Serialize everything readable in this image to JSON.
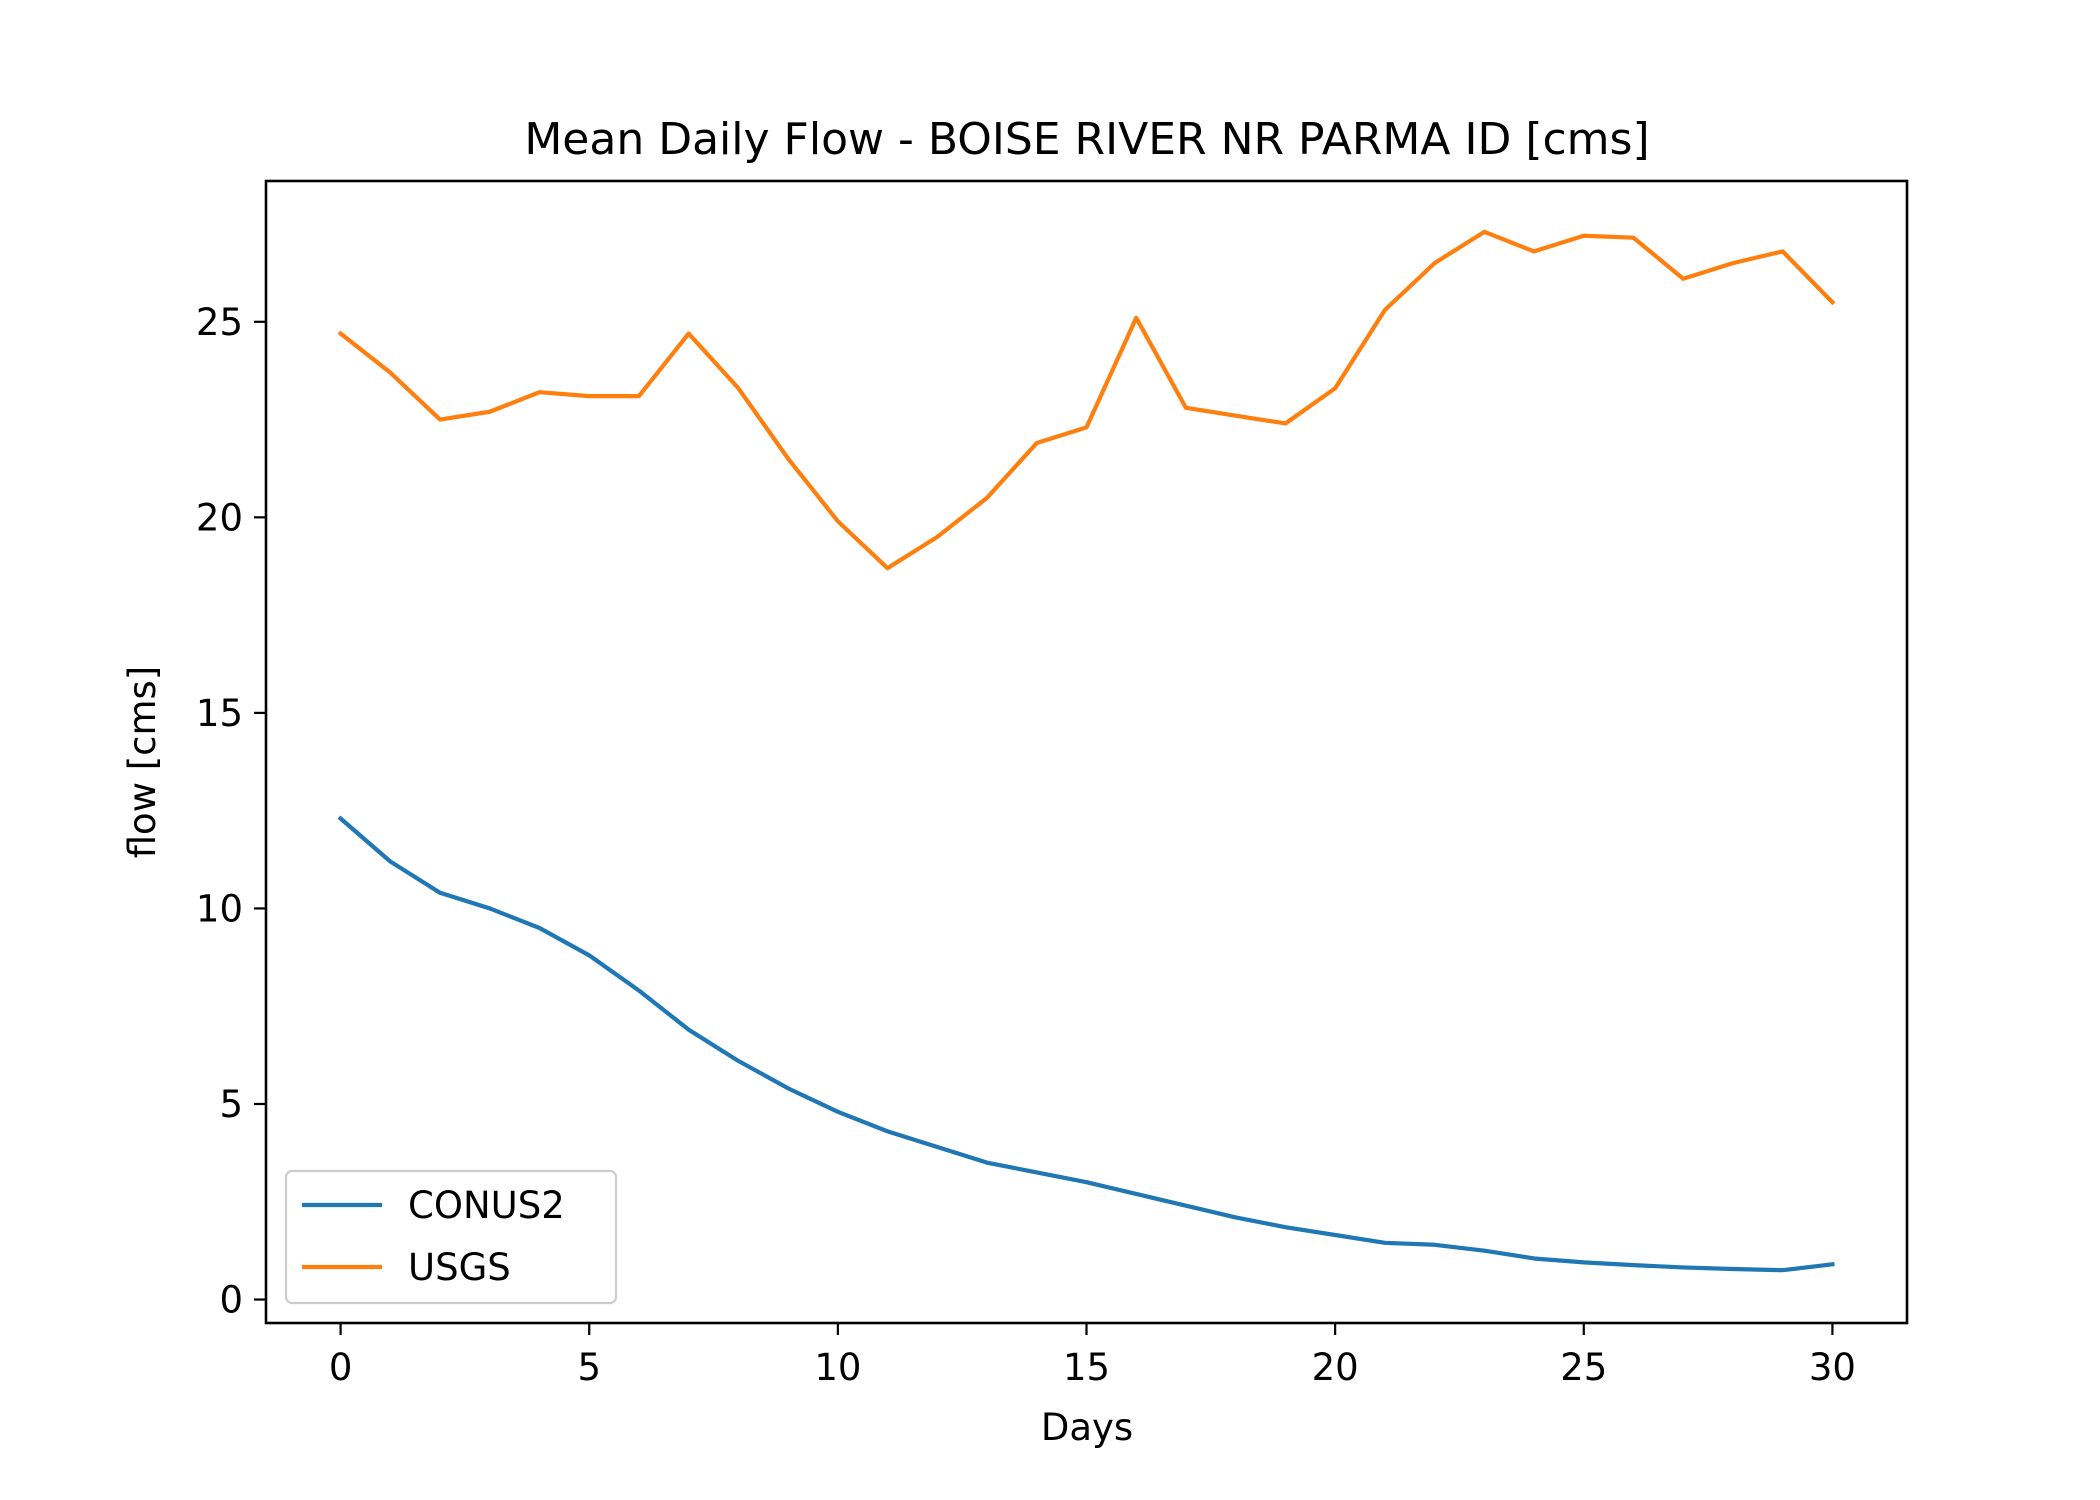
{
  "chart_data": {
    "type": "line",
    "title": "Mean Daily Flow - BOISE RIVER NR PARMA ID [cms]",
    "xlabel": "Days",
    "ylabel": "flow [cms]",
    "xlim": [
      -1.5,
      31.5
    ],
    "ylim": [
      -0.6,
      28.6
    ],
    "xticks": [
      0,
      5,
      10,
      15,
      20,
      25,
      30
    ],
    "yticks": [
      0,
      5,
      10,
      15,
      20,
      25
    ],
    "grid": false,
    "legend": "lower-left",
    "x": [
      0,
      1,
      2,
      3,
      4,
      5,
      6,
      7,
      8,
      9,
      10,
      11,
      12,
      13,
      14,
      15,
      16,
      17,
      18,
      19,
      20,
      21,
      22,
      23,
      24,
      25,
      26,
      27,
      28,
      29,
      30
    ],
    "series": [
      {
        "name": "CONUS2",
        "color": "#1f77b4",
        "values": [
          12.3,
          11.2,
          10.4,
          10.0,
          9.5,
          8.8,
          7.9,
          6.9,
          6.1,
          5.4,
          4.8,
          4.3,
          3.9,
          3.5,
          3.25,
          3.0,
          2.7,
          2.4,
          2.1,
          1.85,
          1.65,
          1.45,
          1.4,
          1.25,
          1.05,
          0.95,
          0.88,
          0.82,
          0.78,
          0.75,
          0.9
        ]
      },
      {
        "name": "USGS",
        "color": "#ff7f0e",
        "values": [
          24.7,
          23.7,
          22.5,
          22.7,
          23.2,
          23.1,
          23.1,
          24.7,
          23.3,
          21.5,
          19.9,
          18.7,
          19.5,
          20.5,
          21.9,
          22.3,
          25.1,
          22.8,
          22.6,
          22.4,
          23.3,
          25.3,
          26.5,
          27.3,
          26.8,
          27.2,
          27.15,
          26.1,
          26.5,
          26.8,
          25.5
        ]
      }
    ]
  }
}
